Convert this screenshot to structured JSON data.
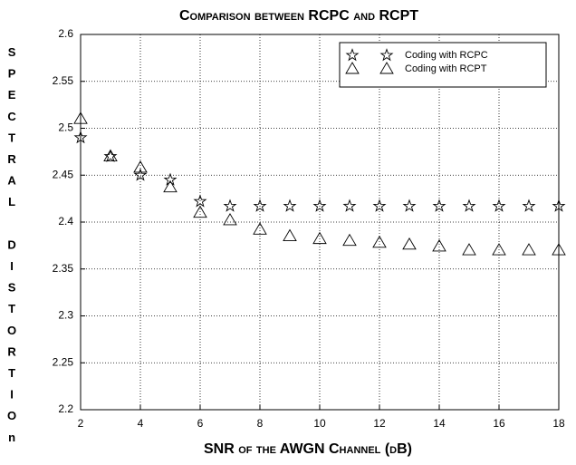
{
  "chart_data": {
    "type": "scatter",
    "title": "Comparison between RCPC and RCPT",
    "x_label": "SNR of the AWGN Channel (dB)",
    "y_label": "SPECTRAL DISTORTIOn",
    "x": [
      2,
      3,
      4,
      5,
      6,
      7,
      8,
      9,
      10,
      11,
      12,
      13,
      14,
      15,
      16,
      17,
      18
    ],
    "series": [
      {
        "name": "Coding with RCPC",
        "color": "#000000",
        "marker": "star",
        "values": [
          2.49,
          2.47,
          2.45,
          2.445,
          2.422,
          2.417,
          2.417,
          2.417,
          2.417,
          2.417,
          2.417,
          2.417,
          2.417,
          2.417,
          2.417,
          2.417,
          2.417
        ]
      },
      {
        "name": "Coding with RCPT",
        "color": "#000000",
        "marker": "triangle",
        "values": [
          2.51,
          2.47,
          2.458,
          2.437,
          2.41,
          2.402,
          2.392,
          2.385,
          2.382,
          2.38,
          2.378,
          2.376,
          2.374,
          2.37,
          2.37,
          2.37,
          2.37
        ]
      }
    ],
    "xlim": [
      2,
      18
    ],
    "xticks": [
      2,
      4,
      6,
      8,
      10,
      12,
      14,
      16,
      18
    ],
    "ylim": [
      2.2,
      2.6
    ],
    "yticks": [
      2.2,
      2.25,
      2.3,
      2.35,
      2.4,
      2.45,
      2.5,
      2.55,
      2.6
    ],
    "grid": true,
    "legend": "upper right"
  }
}
